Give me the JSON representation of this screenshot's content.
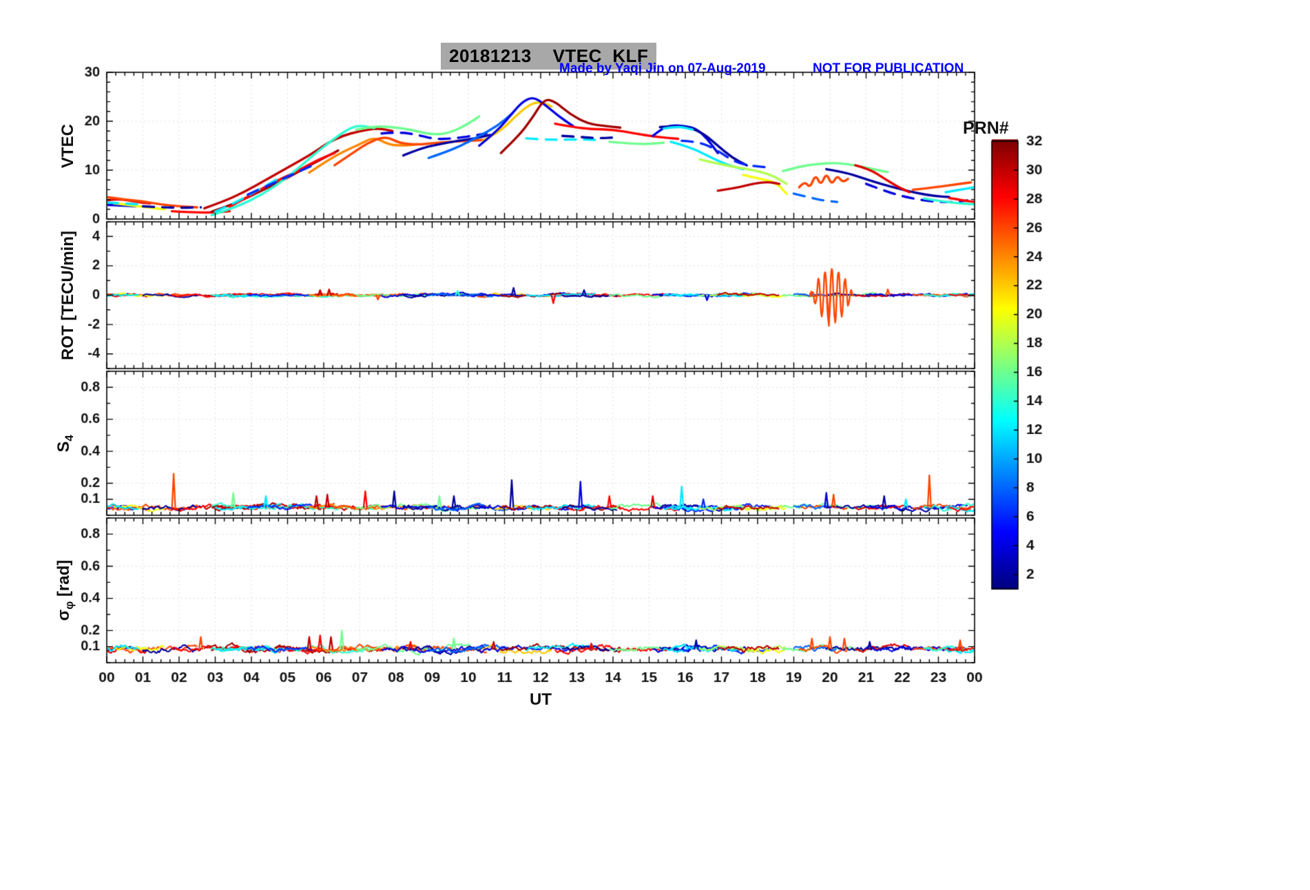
{
  "figure": {
    "title": "20181213    VTEC  KLF",
    "credit": "Made by Yaqi Jin on 07-Aug-2019",
    "notice": "NOT FOR PUBLICATION",
    "xlabel": "UT",
    "x_ticks": [
      "00",
      "01",
      "02",
      "03",
      "04",
      "05",
      "06",
      "07",
      "08",
      "09",
      "10",
      "11",
      "12",
      "13",
      "14",
      "15",
      "16",
      "17",
      "18",
      "19",
      "20",
      "21",
      "22",
      "23",
      "00"
    ],
    "ylabels": {
      "p1": "VTEC",
      "p2": "ROT [TECU/min]",
      "p3_main": "S",
      "p3_sub": "4",
      "p4_main": "σ",
      "p4_sub": "φ",
      "p4_rest": " [rad]"
    },
    "colorbar": {
      "label": "PRN#",
      "tick_values": [
        2,
        4,
        6,
        8,
        10,
        12,
        14,
        16,
        18,
        20,
        22,
        24,
        26,
        28,
        30,
        32
      ],
      "prn_min": 1,
      "prn_max": 32
    },
    "colors": {
      "annotation": "#0000ff",
      "axis": "#000000",
      "grid": "#dcdcdc",
      "title_bg": "#a8a8a8"
    }
  },
  "chart_data": [
    {
      "type": "line",
      "panel": "vtec",
      "ylabel": "VTEC",
      "xlim": [
        0,
        24
      ],
      "ylim": [
        0,
        30
      ],
      "yticks": [
        0,
        10,
        20,
        30
      ],
      "yminor": 2,
      "series": [
        {
          "prn": 4,
          "x": [
            0,
            0.4,
            0.8
          ],
          "y": [
            2.9,
            2.8,
            2.6
          ]
        },
        {
          "prn": 29,
          "x": [
            0,
            0.3,
            0.8,
            1.2
          ],
          "y": [
            3.8,
            4.2,
            3.5,
            3.2
          ]
        },
        {
          "prn": 26,
          "x": [
            0,
            0.5,
            1.0,
            1.5,
            2.0,
            2.5
          ],
          "y": [
            4.5,
            4.0,
            3.6,
            3.0,
            2.6,
            2.4
          ]
        },
        {
          "prn": 20,
          "x": [
            0.2,
            0.7,
            1.2,
            1.6
          ],
          "y": [
            3.2,
            2.8,
            2.3,
            2.0
          ]
        },
        {
          "prn": 12,
          "dash": true,
          "x": [
            0,
            0.4,
            0.9
          ],
          "y": [
            3.4,
            3.2,
            3.0
          ]
        },
        {
          "prn": 2,
          "dash": true,
          "x": [
            1.0,
            1.5,
            2.1,
            2.6
          ],
          "y": [
            2.6,
            2.4,
            2.3,
            2.4
          ]
        },
        {
          "prn": 28,
          "x": [
            1.8,
            2.3,
            2.9,
            3.4
          ],
          "y": [
            1.6,
            1.4,
            1.3,
            1.6
          ]
        },
        {
          "prn": 30,
          "x": [
            2.7,
            3.2,
            3.8,
            4.4,
            5.0,
            5.6,
            6.1,
            6.5,
            7.0,
            7.5,
            7.9
          ],
          "y": [
            2.2,
            3.5,
            5.5,
            8.0,
            10.5,
            13.0,
            15.5,
            17.0,
            18.0,
            18.6,
            18.0
          ]
        },
        {
          "prn": 31,
          "x": [
            2.9,
            3.5,
            4.2,
            4.9,
            5.5,
            6.0,
            6.4
          ],
          "y": [
            1.5,
            3.0,
            5.5,
            8.0,
            10.5,
            12.5,
            14.0
          ]
        },
        {
          "prn": 28,
          "x": [
            3.4,
            4.0,
            4.6,
            5.2,
            5.8,
            6.3
          ],
          "y": [
            2.5,
            5.0,
            7.5,
            9.5,
            12.0,
            13.5
          ]
        },
        {
          "prn": 14,
          "x": [
            2.9,
            3.6,
            4.3,
            5.0,
            5.7,
            6.3,
            6.7,
            7.0,
            7.4
          ],
          "y": [
            0.8,
            2.5,
            5.0,
            8.5,
            13.0,
            16.5,
            18.5,
            19.2,
            18.6
          ]
        },
        {
          "prn": 12,
          "dash": true,
          "x": [
            3.0,
            3.6,
            4.2,
            4.8
          ],
          "y": [
            1.5,
            3.5,
            6.0,
            8.5
          ]
        },
        {
          "prn": 6,
          "dash": true,
          "x": [
            3.9,
            4.5,
            5.1,
            5.7
          ],
          "y": [
            5.0,
            7.0,
            9.0,
            11.0
          ]
        },
        {
          "prn": 24,
          "x": [
            5.6,
            6.1,
            6.6,
            7.0,
            7.4,
            7.8,
            8.2,
            8.6
          ],
          "y": [
            9.5,
            12.0,
            14.0,
            15.3,
            16.8,
            15.2,
            15.0,
            15.3
          ]
        },
        {
          "prn": 26,
          "x": [
            6.3,
            6.8,
            7.2,
            7.7,
            8.1,
            8.6,
            9.0,
            9.5,
            10.0,
            10.5
          ],
          "y": [
            11.0,
            13.5,
            15.5,
            17.0,
            15.5,
            15.2,
            15.5,
            15.8,
            16.0,
            16.2
          ]
        },
        {
          "prn": 16,
          "x": [
            6.9,
            7.4,
            7.9,
            8.4,
            9.0,
            9.5,
            10.0,
            10.3
          ],
          "y": [
            18.3,
            19.0,
            18.8,
            18.3,
            17.2,
            17.6,
            19.5,
            21.0
          ]
        },
        {
          "prn": 4,
          "dash": true,
          "x": [
            7.6,
            8.1,
            8.6,
            9.1,
            9.6,
            10.1,
            10.5
          ],
          "y": [
            17.5,
            17.8,
            17.2,
            16.3,
            16.5,
            17.0,
            17.5
          ]
        },
        {
          "prn": 2,
          "x": [
            8.2,
            8.7,
            9.2,
            9.7,
            10.2,
            10.6
          ],
          "y": [
            13.0,
            14.5,
            15.3,
            16.0,
            16.5,
            17.2
          ]
        },
        {
          "prn": 8,
          "x": [
            8.9,
            9.3,
            9.8,
            10.3,
            10.8,
            11.2
          ],
          "y": [
            12.5,
            13.5,
            15.0,
            17.0,
            19.0,
            21.5
          ]
        },
        {
          "prn": 22,
          "x": [
            10.4,
            10.9,
            11.3,
            11.7,
            12.0,
            12.3
          ],
          "y": [
            16.0,
            18.0,
            21.0,
            23.5,
            24.0,
            23.0
          ]
        },
        {
          "prn": 4,
          "x": [
            10.3,
            10.8,
            11.2,
            11.5,
            11.8,
            12.1,
            12.5,
            12.9
          ],
          "y": [
            15.0,
            18.0,
            21.5,
            24.0,
            25.0,
            23.5,
            21.0,
            19.0
          ]
        },
        {
          "prn": 31,
          "x": [
            10.9,
            11.4,
            11.8,
            12.1,
            12.4,
            12.8,
            13.3,
            13.8,
            14.2
          ],
          "y": [
            13.5,
            17.0,
            21.0,
            24.6,
            24.0,
            21.5,
            19.5,
            19.0,
            18.7
          ]
        },
        {
          "prn": 28,
          "x": [
            12.4,
            12.9,
            13.4,
            14.0,
            14.6,
            15.2,
            15.8
          ],
          "y": [
            19.5,
            18.8,
            18.4,
            18.3,
            17.5,
            16.8,
            16.4
          ]
        },
        {
          "prn": 12,
          "dash": true,
          "x": [
            11.6,
            12.0,
            12.5,
            13.0,
            13.5
          ],
          "y": [
            16.5,
            16.3,
            16.2,
            16.3,
            16.2
          ]
        },
        {
          "prn": 2,
          "dash": true,
          "x": [
            12.6,
            13.1,
            13.6,
            14.1
          ],
          "y": [
            17.0,
            16.8,
            16.5,
            16.7
          ]
        },
        {
          "prn": 16,
          "x": [
            13.9,
            14.4,
            14.9,
            15.4
          ],
          "y": [
            15.8,
            15.5,
            15.3,
            15.6
          ]
        },
        {
          "prn": 4,
          "x": [
            15.1,
            15.4,
            15.7,
            16.0,
            16.3,
            16.6,
            16.9
          ],
          "y": [
            17.0,
            18.8,
            19.2,
            19.0,
            18.5,
            16.5,
            13.5
          ]
        },
        {
          "prn": 2,
          "x": [
            15.3,
            15.7,
            16.1,
            16.5,
            16.9,
            17.3,
            17.7
          ],
          "y": [
            18.8,
            19.0,
            18.8,
            17.5,
            15.0,
            12.5,
            11.0
          ]
        },
        {
          "prn": 12,
          "x": [
            15.4,
            15.8,
            16.2
          ],
          "y": [
            18.5,
            19.0,
            18.3
          ]
        },
        {
          "prn": 6,
          "dash": true,
          "x": [
            15.9,
            16.4,
            16.9,
            17.4,
            17.9,
            18.4
          ],
          "y": [
            16.0,
            15.8,
            14.0,
            11.5,
            10.8,
            10.5
          ]
        },
        {
          "prn": 12,
          "x": [
            15.6,
            16.1,
            16.6,
            17.1,
            17.6
          ],
          "y": [
            15.8,
            14.8,
            13.0,
            11.2,
            10.2
          ]
        },
        {
          "prn": 18,
          "x": [
            16.4,
            16.9,
            17.4,
            17.9,
            18.4,
            18.8
          ],
          "y": [
            12.2,
            11.3,
            10.6,
            10.0,
            9.0,
            7.2
          ]
        },
        {
          "prn": 20,
          "x": [
            17.6,
            18.1,
            18.5,
            18.8
          ],
          "y": [
            9.0,
            8.2,
            7.5,
            5.2
          ]
        },
        {
          "prn": 30,
          "x": [
            16.9,
            17.4,
            17.9,
            18.3,
            18.6
          ],
          "y": [
            5.8,
            6.3,
            7.3,
            7.6,
            7.2
          ]
        },
        {
          "prn": 16,
          "x": [
            18.7,
            19.2,
            19.7,
            20.2,
            20.7,
            21.2,
            21.6
          ],
          "y": [
            9.8,
            10.8,
            11.3,
            11.5,
            11.0,
            10.2,
            9.6
          ]
        },
        {
          "prn": 26,
          "x": [
            19.15,
            19.3,
            19.45,
            19.6,
            19.75,
            19.9,
            20.05,
            20.2,
            20.35,
            20.5
          ],
          "y": [
            6.5,
            7.8,
            6.3,
            9.2,
            6.8,
            9.5,
            6.9,
            9.0,
            7.5,
            8.2
          ]
        },
        {
          "prn": 8,
          "dash": true,
          "x": [
            19.0,
            19.4,
            19.8,
            20.2
          ],
          "y": [
            5.2,
            4.5,
            3.8,
            3.5
          ]
        },
        {
          "prn": 2,
          "x": [
            19.9,
            20.4,
            20.9,
            21.4,
            21.9,
            22.4,
            22.9,
            23.3
          ],
          "y": [
            10.2,
            9.6,
            8.4,
            7.2,
            6.2,
            5.3,
            4.7,
            4.5
          ]
        },
        {
          "prn": 29,
          "x": [
            20.7,
            21.1,
            21.5,
            21.9,
            22.2
          ],
          "y": [
            11.0,
            10.2,
            8.3,
            6.5,
            5.5
          ]
        },
        {
          "prn": 4,
          "dash": true,
          "x": [
            21.0,
            21.6,
            22.2,
            22.8,
            23.4,
            23.8
          ],
          "y": [
            7.2,
            5.5,
            4.3,
            3.6,
            3.4,
            3.8
          ]
        },
        {
          "prn": 26,
          "x": [
            22.3,
            22.9,
            23.4,
            23.9
          ],
          "y": [
            6.0,
            6.5,
            7.0,
            7.5
          ]
        },
        {
          "prn": 14,
          "x": [
            22.6,
            23.1,
            23.6,
            24.0
          ],
          "y": [
            4.2,
            3.6,
            3.2,
            3.0
          ]
        },
        {
          "prn": 12,
          "x": [
            23.2,
            23.6,
            24.0
          ],
          "y": [
            5.5,
            6.0,
            6.5
          ]
        },
        {
          "prn": 28,
          "x": [
            23.3,
            23.7,
            24.0
          ],
          "y": [
            4.3,
            3.8,
            3.5
          ]
        }
      ]
    },
    {
      "type": "line",
      "panel": "rot",
      "ylabel": "ROT [TECU/min]",
      "xlim": [
        0,
        24
      ],
      "ylim": [
        -5,
        5
      ],
      "yticks": [
        -4,
        -2,
        0,
        2,
        4
      ],
      "yminor": 1,
      "noise_base": 0,
      "noise_amp": 0.12,
      "events": [
        {
          "prn": 30,
          "x": 5.9,
          "v": 0.35
        },
        {
          "prn": 30,
          "x": 6.15,
          "v": 0.4
        },
        {
          "prn": 26,
          "x": 7.5,
          "v": -0.3
        },
        {
          "prn": 14,
          "x": 9.7,
          "v": 0.3
        },
        {
          "prn": 2,
          "x": 11.25,
          "v": 0.5
        },
        {
          "prn": 28,
          "x": 12.35,
          "v": -0.55
        },
        {
          "prn": 2,
          "x": 13.2,
          "v": 0.35
        },
        {
          "prn": 4,
          "x": 16.6,
          "v": -0.35
        },
        {
          "prn": 26,
          "x": 19.97,
          "v": -2.1
        },
        {
          "prn": 26,
          "x": 21.6,
          "v": 0.4
        }
      ],
      "burst": {
        "prn": 26,
        "x0": 19.45,
        "x1": 20.65,
        "amp": 1.85
      }
    },
    {
      "type": "line",
      "panel": "s4",
      "ylabel": "S_4",
      "xlim": [
        0,
        24
      ],
      "ylim": [
        0,
        0.9
      ],
      "yticks": [
        0.1,
        0.2,
        0.4,
        0.6,
        0.8
      ],
      "yminor": 0.1,
      "noise_base": 0.05,
      "noise_amp": 0.02,
      "spikes": [
        {
          "prn": 26,
          "x": 1.85,
          "h": 0.26
        },
        {
          "prn": 16,
          "x": 3.5,
          "h": 0.14
        },
        {
          "prn": 12,
          "x": 4.4,
          "h": 0.12
        },
        {
          "prn": 30,
          "x": 5.8,
          "h": 0.12
        },
        {
          "prn": 30,
          "x": 6.1,
          "h": 0.13
        },
        {
          "prn": 28,
          "x": 7.15,
          "h": 0.15
        },
        {
          "prn": 2,
          "x": 7.95,
          "h": 0.15
        },
        {
          "prn": 16,
          "x": 9.2,
          "h": 0.12
        },
        {
          "prn": 2,
          "x": 9.6,
          "h": 0.12
        },
        {
          "prn": 2,
          "x": 11.2,
          "h": 0.22
        },
        {
          "prn": 4,
          "x": 13.1,
          "h": 0.21
        },
        {
          "prn": 28,
          "x": 13.9,
          "h": 0.12
        },
        {
          "prn": 29,
          "x": 15.1,
          "h": 0.12
        },
        {
          "prn": 12,
          "x": 15.9,
          "h": 0.18
        },
        {
          "prn": 6,
          "x": 16.5,
          "h": 0.1
        },
        {
          "prn": 4,
          "x": 19.9,
          "h": 0.14
        },
        {
          "prn": 26,
          "x": 20.1,
          "h": 0.13
        },
        {
          "prn": 2,
          "x": 21.5,
          "h": 0.12
        },
        {
          "prn": 12,
          "x": 22.1,
          "h": 0.1
        },
        {
          "prn": 26,
          "x": 22.75,
          "h": 0.25
        }
      ]
    },
    {
      "type": "line",
      "panel": "sigma_phi",
      "ylabel": "sigma_phi [rad]",
      "xlim": [
        0,
        24
      ],
      "ylim": [
        0,
        0.9
      ],
      "yticks": [
        0.1,
        0.2,
        0.4,
        0.6,
        0.8
      ],
      "yminor": 0.1,
      "noise_base": 0.085,
      "noise_amp": 0.024,
      "spikes": [
        {
          "prn": 26,
          "x": 2.6,
          "h": 0.16
        },
        {
          "prn": 30,
          "x": 5.6,
          "h": 0.16
        },
        {
          "prn": 28,
          "x": 5.9,
          "h": 0.17
        },
        {
          "prn": 30,
          "x": 6.2,
          "h": 0.16
        },
        {
          "prn": 16,
          "x": 6.5,
          "h": 0.2
        },
        {
          "prn": 28,
          "x": 8.4,
          "h": 0.13
        },
        {
          "prn": 16,
          "x": 9.6,
          "h": 0.15
        },
        {
          "prn": 30,
          "x": 10.7,
          "h": 0.13
        },
        {
          "prn": 28,
          "x": 13.4,
          "h": 0.12
        },
        {
          "prn": 2,
          "x": 16.3,
          "h": 0.14
        },
        {
          "prn": 26,
          "x": 19.5,
          "h": 0.15
        },
        {
          "prn": 26,
          "x": 20.0,
          "h": 0.16
        },
        {
          "prn": 26,
          "x": 20.4,
          "h": 0.15
        },
        {
          "prn": 2,
          "x": 21.1,
          "h": 0.13
        },
        {
          "prn": 26,
          "x": 23.6,
          "h": 0.14
        }
      ]
    }
  ]
}
